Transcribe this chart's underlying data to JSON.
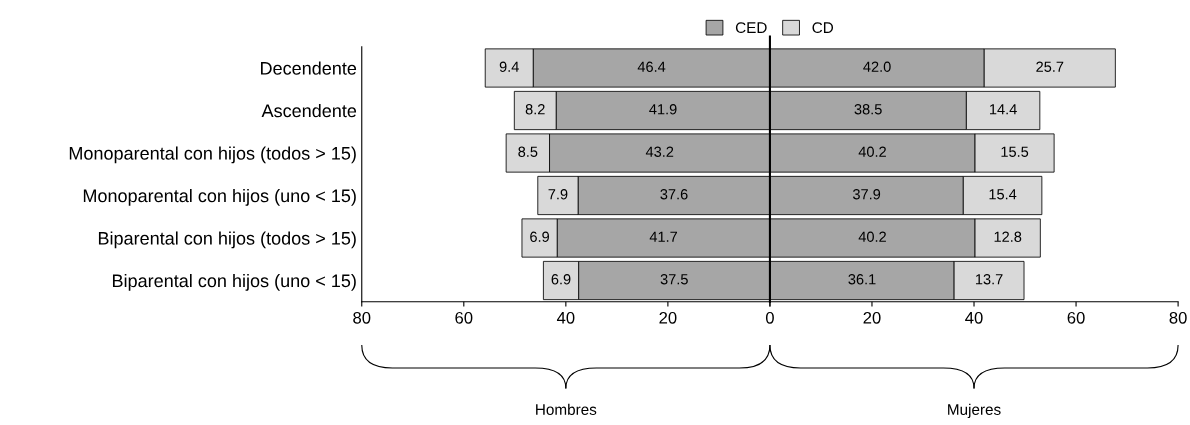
{
  "chart_data": [
    {
      "type": "bar",
      "orientation": "horizontal",
      "stacked": true,
      "categories": [
        "Decendente",
        "Ascendente",
        "Monoparental con hijos (todos > 15)",
        "Monoparental con hijos (uno < 15)",
        "Biparental con hijos (todos > 15)",
        "Biparental con hijos (uno < 15)"
      ],
      "series": [
        {
          "name": "CED",
          "color": "#a6a6a6",
          "values": [
            46.4,
            41.9,
            43.2,
            37.6,
            41.7,
            37.5
          ],
          "value_labels": [
            "46.4",
            "41.9",
            "43.2",
            "37.6",
            "41.7",
            "37.5"
          ]
        },
        {
          "name": "CD",
          "color": "#d9d9d9",
          "values": [
            9.4,
            8.2,
            8.5,
            7.9,
            6.9,
            6.9
          ],
          "value_labels": [
            "9.4",
            "8.2",
            "8.5",
            "7.9",
            "6.9",
            "6.9"
          ]
        }
      ],
      "xlim": [
        80,
        0
      ],
      "xticks": [
        80,
        60,
        40,
        20,
        0
      ],
      "annotations": [
        "Hombres"
      ],
      "legend": "top right",
      "grid": false
    },
    {
      "type": "bar",
      "orientation": "horizontal",
      "stacked": true,
      "categories": [
        null,
        null,
        null,
        null,
        null,
        null
      ],
      "series": [
        {
          "color": "#a6a6a6",
          "values": [
            42.0,
            38.5,
            40.2,
            37.9,
            40.2,
            36.1
          ],
          "value_labels": [
            "42.0",
            "38.5",
            "40.2",
            "37.9",
            "40.2",
            "36.1"
          ]
        },
        {
          "color": "#d9d9d9",
          "values": [
            25.7,
            14.4,
            15.5,
            15.4,
            12.8,
            13.7
          ],
          "value_labels": [
            "25.7",
            "14.4",
            "15.5",
            "15.4",
            "12.8",
            "13.7"
          ]
        }
      ],
      "xlim": [
        0,
        80
      ],
      "xticks": [
        {
          "value": 0,
          "label": null
        },
        20,
        40,
        60,
        80
      ],
      "annotations": [
        "Mujeres"
      ],
      "tick_labels": "x",
      "grid": false
    }
  ]
}
